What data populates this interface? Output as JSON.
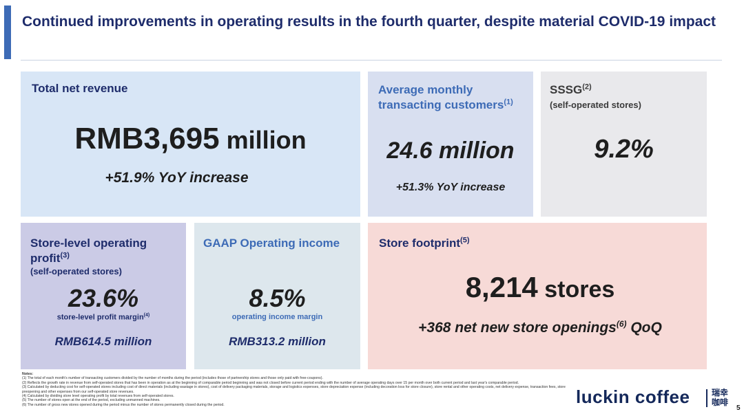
{
  "header": {
    "title": "Continued improvements in operating results in the fourth quarter, despite material COVID-19 impact"
  },
  "cards": {
    "total_net_revenue": {
      "label": "Total net revenue",
      "value": "RMB3,695",
      "unit": " million",
      "note": "+51.9% YoY increase"
    },
    "monthly_customers": {
      "label": "Average monthly transacting customers",
      "label_ref": "(1)",
      "value": "24.6 million",
      "note": "+51.3% YoY increase"
    },
    "sssg": {
      "label": "SSSG",
      "label_ref": "(2)",
      "sub": "(self-operated stores)",
      "value": "9.2%"
    },
    "store_level_profit": {
      "label": "Store-level operating profit",
      "label_ref": "(3)",
      "sub": "(self-operated stores)",
      "value": "23.6%",
      "caption": "store-level profit margin",
      "caption_ref": "(4)",
      "amount": "RMB614.5 million"
    },
    "gaap_operating_income": {
      "label": "GAAP Operating income",
      "value": "8.5%",
      "caption": "operating income margin",
      "amount": "RMB313.2 million"
    },
    "store_footprint": {
      "label": "Store footprint",
      "label_ref": "(5)",
      "value": "8,214",
      "unit": " stores",
      "note_pre": "+368 net new store openings",
      "note_ref": "(6)",
      "note_post": " QoQ"
    }
  },
  "footnotes": {
    "heading": "Notes:",
    "items": [
      "(1) The total of each month's number of transacting customers divided by the number of months during the period (includes those of partnership stores and those only paid with free-coupons).",
      "(2) Reflects the growth rate in revenue from self-operated stores that has been in operation as at the beginning of comparable period beginning and was not closed before current period ending with the number of average operating days over 15 per month over both current period and last year's comparable period.",
      "(3) Calculated by deducting cost for self-operated stores including cost of direct materials (including wastage in stores), cost of delivery packaging materials, storage and logistics expenses, store depreciation expense (including decoration loss for store closure), store rental and other operating costs, net delivery expense, transaction fees, store preopening and other expenses from our self-operated store revenues.",
      "(4) Calculated by dividing store level operating profit by total revenues from self-operated stores.",
      "(5) The number of stores open at the end of the period, excluding unmanned machines.",
      "(6) The number of gross new stores opened during the period minus the number of stores permanently closed during the period."
    ]
  },
  "branding": {
    "logo_text": "luckin coffee",
    "logo_cn_line1": "瑞幸",
    "logo_cn_line2": "咖啡"
  },
  "page_number": "5",
  "colors": {
    "title": "#1e2c6b",
    "accent_bar": "#3d6bb6",
    "label_dark": "#1e2c6b",
    "label_blue": "#3d6bb6",
    "label_gray": "#3a3a3a",
    "card_revenue": "#d8e6f6",
    "card_customers": "#d8dff0",
    "card_sssg": "#e9e9ec",
    "card_store_profit": "#cbcbe6",
    "card_gaap": "#dde7ed",
    "card_store_footprint": "#f7dad7"
  }
}
